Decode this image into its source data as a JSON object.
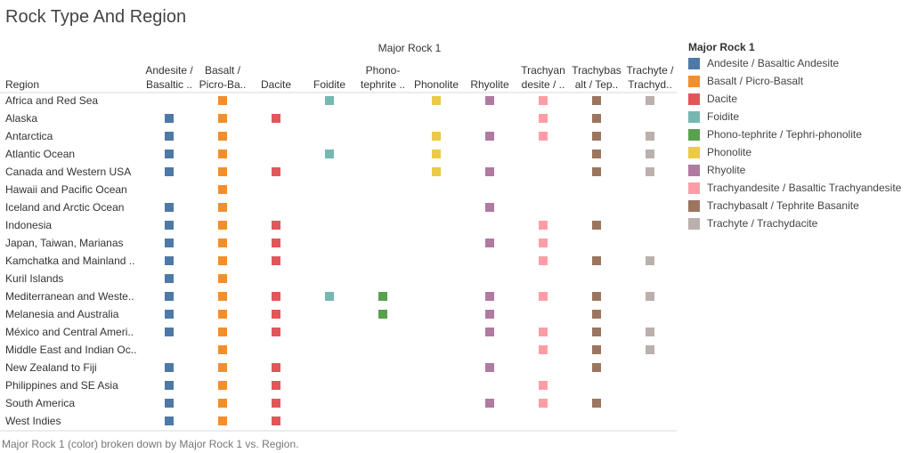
{
  "title": "Rock Type And Region",
  "caption": "Major Rock 1 (color) broken down by Major Rock 1 vs. Region.",
  "chart_data": {
    "type": "table",
    "column_field": "Major Rock 1",
    "row_field": "Region",
    "columns": [
      {
        "name": "Andesite / Basaltic Andesite",
        "header": [
          "Andesite /",
          "Basaltic .."
        ],
        "color": "#4e79a7"
      },
      {
        "name": "Basalt / Picro-Basalt",
        "header": [
          "Basalt /",
          "Picro-Ba.."
        ],
        "color": "#f28e2b"
      },
      {
        "name": "Dacite",
        "header": [
          "Dacite"
        ],
        "color": "#e15759"
      },
      {
        "name": "Foidite",
        "header": [
          "Foidite"
        ],
        "color": "#76b7b2"
      },
      {
        "name": "Phono-tephrite / Tephri-phonolite",
        "header": [
          "Phono-",
          "tephrite .."
        ],
        "color": "#59a14f"
      },
      {
        "name": "Phonolite",
        "header": [
          "Phonolite"
        ],
        "color": "#edc948"
      },
      {
        "name": "Rhyolite",
        "header": [
          "Rhyolite"
        ],
        "color": "#b07aa1"
      },
      {
        "name": "Trachyandesite / Basaltic Trachyandesite",
        "header": [
          "Trachyan",
          "desite / .."
        ],
        "color": "#ff9da7"
      },
      {
        "name": "Trachybasalt / Tephrite Basanite",
        "header": [
          "Trachybas",
          "alt / Tep.."
        ],
        "color": "#9c755f"
      },
      {
        "name": "Trachyte / Trachydacite",
        "header": [
          "Trachyte /",
          "Trachyd.."
        ],
        "color": "#bab0ac"
      }
    ],
    "rows": [
      {
        "region": "Africa and Red Sea",
        "present": [
          0,
          1,
          0,
          1,
          0,
          1,
          1,
          1,
          1,
          1
        ]
      },
      {
        "region": "Alaska",
        "present": [
          1,
          1,
          1,
          0,
          0,
          0,
          0,
          1,
          1,
          0
        ]
      },
      {
        "region": "Antarctica",
        "present": [
          1,
          1,
          0,
          0,
          0,
          1,
          1,
          1,
          1,
          1
        ]
      },
      {
        "region": "Atlantic Ocean",
        "present": [
          1,
          1,
          0,
          1,
          0,
          1,
          0,
          0,
          1,
          1
        ]
      },
      {
        "region": "Canada and Western USA",
        "present": [
          1,
          1,
          1,
          0,
          0,
          1,
          1,
          0,
          1,
          1
        ]
      },
      {
        "region": "Hawaii and Pacific Ocean",
        "present": [
          0,
          1,
          0,
          0,
          0,
          0,
          0,
          0,
          0,
          0
        ]
      },
      {
        "region": "Iceland and Arctic Ocean",
        "present": [
          1,
          1,
          0,
          0,
          0,
          0,
          1,
          0,
          0,
          0
        ]
      },
      {
        "region": "Indonesia",
        "present": [
          1,
          1,
          1,
          0,
          0,
          0,
          0,
          1,
          1,
          0
        ]
      },
      {
        "region": "Japan, Taiwan, Marianas",
        "present": [
          1,
          1,
          1,
          0,
          0,
          0,
          1,
          1,
          0,
          0
        ]
      },
      {
        "region": "Kamchatka and Mainland ..",
        "present": [
          1,
          1,
          1,
          0,
          0,
          0,
          0,
          1,
          1,
          1
        ]
      },
      {
        "region": "Kuril Islands",
        "present": [
          1,
          1,
          0,
          0,
          0,
          0,
          0,
          0,
          0,
          0
        ]
      },
      {
        "region": "Mediterranean and Weste..",
        "present": [
          1,
          1,
          1,
          1,
          1,
          0,
          1,
          1,
          1,
          1
        ]
      },
      {
        "region": "Melanesia and Australia",
        "present": [
          1,
          1,
          1,
          0,
          1,
          0,
          1,
          0,
          1,
          0
        ]
      },
      {
        "region": "México and Central Ameri..",
        "present": [
          1,
          1,
          1,
          0,
          0,
          0,
          1,
          1,
          1,
          1
        ]
      },
      {
        "region": "Middle East and Indian Oc..",
        "present": [
          0,
          1,
          0,
          0,
          0,
          0,
          0,
          1,
          1,
          1
        ]
      },
      {
        "region": "New Zealand to Fiji",
        "present": [
          1,
          1,
          1,
          0,
          0,
          0,
          1,
          0,
          1,
          0
        ]
      },
      {
        "region": "Philippines and SE Asia",
        "present": [
          1,
          1,
          1,
          0,
          0,
          0,
          0,
          1,
          0,
          0
        ]
      },
      {
        "region": "South America",
        "present": [
          1,
          1,
          1,
          0,
          0,
          0,
          1,
          1,
          1,
          0
        ]
      },
      {
        "region": "West Indies",
        "present": [
          1,
          1,
          1,
          0,
          0,
          0,
          0,
          0,
          0,
          0
        ]
      }
    ],
    "legend": {
      "title": "Major Rock 1",
      "position": "right",
      "items": [
        {
          "label": "Andesite / Basaltic Andesite",
          "color": "#4e79a7"
        },
        {
          "label": "Basalt / Picro-Basalt",
          "color": "#f28e2b"
        },
        {
          "label": "Dacite",
          "color": "#e15759"
        },
        {
          "label": "Foidite",
          "color": "#76b7b2"
        },
        {
          "label": "Phono-tephrite /  Tephri-phonolite",
          "color": "#59a14f"
        },
        {
          "label": "Phonolite",
          "color": "#edc948"
        },
        {
          "label": "Rhyolite",
          "color": "#b07aa1"
        },
        {
          "label": "Trachyandesite / Basaltic Trachyandesite",
          "color": "#ff9da7"
        },
        {
          "label": "Trachybasalt / Tephrite Basanite",
          "color": "#9c755f"
        },
        {
          "label": "Trachyte / Trachydacite",
          "color": "#bab0ac"
        }
      ]
    }
  }
}
